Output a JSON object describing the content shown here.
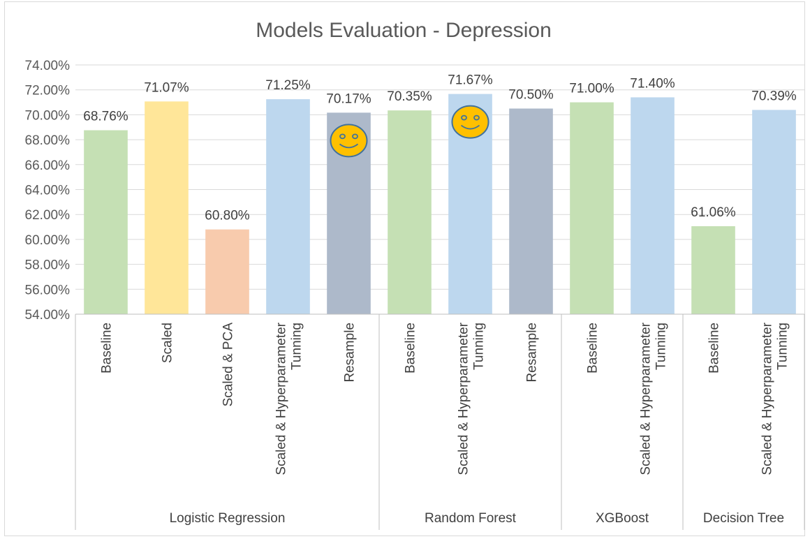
{
  "chart_data": {
    "type": "bar",
    "title": "Models Evaluation - Depression",
    "xlabel": "",
    "ylabel": "",
    "ylim": [
      0.54,
      0.74
    ],
    "yticks": [
      "54.00%",
      "56.00%",
      "58.00%",
      "60.00%",
      "62.00%",
      "64.00%",
      "66.00%",
      "68.00%",
      "70.00%",
      "72.00%",
      "74.00%"
    ],
    "grid": true,
    "legend": "none",
    "groups": [
      {
        "name": "Logistic Regression",
        "categories": [
          "Baseline",
          "Scaled",
          "Scaled & PCA",
          "Scaled & Hyperparameter Tunning",
          "Resample"
        ]
      },
      {
        "name": "Random Forest",
        "categories": [
          "Baseline",
          "Scaled & Hyperparameter Tunning",
          "Resample"
        ]
      },
      {
        "name": "XGBoost",
        "categories": [
          "Baseline",
          "Scaled & Hyperparameter Tunning"
        ]
      },
      {
        "name": "Decision Tree",
        "categories": [
          "Baseline",
          "Scaled & Hyperparameter Tunning"
        ]
      }
    ],
    "values": [
      0.6876,
      0.7107,
      0.608,
      0.7125,
      0.7017,
      0.7035,
      0.7167,
      0.705,
      0.71,
      0.714,
      0.6106,
      0.7039
    ],
    "data_labels": [
      "68.76%",
      "71.07%",
      "60.80%",
      "71.25%",
      "70.17%",
      "70.35%",
      "71.67%",
      "70.50%",
      "71.00%",
      "71.40%",
      "61.06%",
      "70.39%"
    ],
    "bar_colors": [
      "#c5e0b4",
      "#ffe699",
      "#f8cbad",
      "#bdd7ee",
      "#adb9ca",
      "#c5e0b4",
      "#bdd7ee",
      "#adb9ca",
      "#c5e0b4",
      "#bdd7ee",
      "#c5e0b4",
      "#bdd7ee"
    ],
    "annotations": [
      {
        "type": "smiley-icon",
        "bar_index": 4
      },
      {
        "type": "smiley-icon",
        "bar_index": 6
      }
    ]
  },
  "colors": {
    "grid": "#d9d9d9",
    "axis": "#bfbfbf",
    "smiley_fill": "#ffc000",
    "smiley_stroke": "#41719c"
  }
}
